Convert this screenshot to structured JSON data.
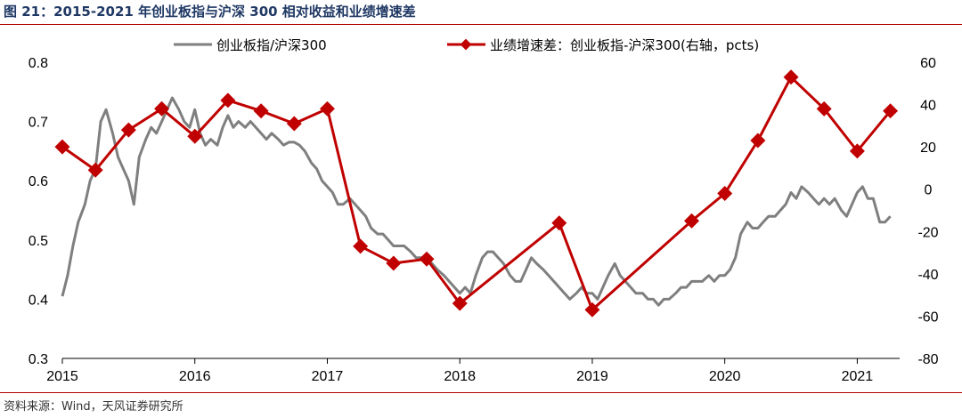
{
  "figure": {
    "title": "图 21：2015-2021 年创业板指与沪深 300 相对收益和业绩增速差",
    "source": "资料来源：Wind，天风证券研究所"
  },
  "chart_data": {
    "type": "line",
    "title": "2015-2021 年创业板指与沪深 300 相对收益和业绩增速差",
    "xlabel": "",
    "ylabel": "",
    "x_ticks": [
      "2015",
      "2016",
      "2017",
      "2018",
      "2019",
      "2020",
      "2021"
    ],
    "x_range": [
      2015.0,
      2021.32
    ],
    "y_left": {
      "range": [
        0.3,
        0.8
      ],
      "ticks": [
        "0.3",
        "0.4",
        "0.5",
        "0.6",
        "0.7",
        "0.8"
      ]
    },
    "y_right": {
      "range": [
        -80,
        60
      ],
      "ticks": [
        "-80",
        "-60",
        "-40",
        "-20",
        "0",
        "20",
        "40",
        "60"
      ]
    },
    "grid": false,
    "legend_position": "top",
    "colors": {
      "ratio_line": "#7f7f7f",
      "growth_line": "#c00000"
    },
    "series": [
      {
        "name": "创业板指/沪深300",
        "axis": "left",
        "style": "line",
        "points": [
          [
            2015.0,
            0.405
          ],
          [
            2015.04,
            0.44
          ],
          [
            2015.08,
            0.49
          ],
          [
            2015.12,
            0.53
          ],
          [
            2015.17,
            0.56
          ],
          [
            2015.21,
            0.6
          ],
          [
            2015.25,
            0.62
          ],
          [
            2015.29,
            0.7
          ],
          [
            2015.33,
            0.72
          ],
          [
            2015.38,
            0.68
          ],
          [
            2015.42,
            0.64
          ],
          [
            2015.46,
            0.62
          ],
          [
            2015.5,
            0.6
          ],
          [
            2015.54,
            0.56
          ],
          [
            2015.58,
            0.64
          ],
          [
            2015.63,
            0.67
          ],
          [
            2015.67,
            0.69
          ],
          [
            2015.71,
            0.68
          ],
          [
            2015.75,
            0.7
          ],
          [
            2015.79,
            0.72
          ],
          [
            2015.83,
            0.74
          ],
          [
            2015.88,
            0.72
          ],
          [
            2015.92,
            0.7
          ],
          [
            2015.96,
            0.69
          ],
          [
            2016.0,
            0.72
          ],
          [
            2016.04,
            0.68
          ],
          [
            2016.08,
            0.66
          ],
          [
            2016.12,
            0.67
          ],
          [
            2016.17,
            0.66
          ],
          [
            2016.21,
            0.69
          ],
          [
            2016.25,
            0.71
          ],
          [
            2016.29,
            0.69
          ],
          [
            2016.33,
            0.7
          ],
          [
            2016.38,
            0.69
          ],
          [
            2016.42,
            0.7
          ],
          [
            2016.46,
            0.69
          ],
          [
            2016.5,
            0.68
          ],
          [
            2016.54,
            0.67
          ],
          [
            2016.58,
            0.68
          ],
          [
            2016.63,
            0.67
          ],
          [
            2016.67,
            0.66
          ],
          [
            2016.71,
            0.665
          ],
          [
            2016.75,
            0.665
          ],
          [
            2016.79,
            0.66
          ],
          [
            2016.83,
            0.65
          ],
          [
            2016.88,
            0.63
          ],
          [
            2016.92,
            0.62
          ],
          [
            2016.96,
            0.6
          ],
          [
            2017.0,
            0.59
          ],
          [
            2017.04,
            0.58
          ],
          [
            2017.08,
            0.56
          ],
          [
            2017.12,
            0.56
          ],
          [
            2017.17,
            0.57
          ],
          [
            2017.21,
            0.56
          ],
          [
            2017.25,
            0.55
          ],
          [
            2017.29,
            0.54
          ],
          [
            2017.33,
            0.52
          ],
          [
            2017.38,
            0.51
          ],
          [
            2017.42,
            0.51
          ],
          [
            2017.46,
            0.5
          ],
          [
            2017.5,
            0.49
          ],
          [
            2017.54,
            0.49
          ],
          [
            2017.58,
            0.49
          ],
          [
            2017.63,
            0.48
          ],
          [
            2017.67,
            0.47
          ],
          [
            2017.71,
            0.47
          ],
          [
            2017.75,
            0.47
          ],
          [
            2017.79,
            0.46
          ],
          [
            2017.83,
            0.45
          ],
          [
            2017.88,
            0.44
          ],
          [
            2017.92,
            0.43
          ],
          [
            2017.96,
            0.42
          ],
          [
            2018.0,
            0.41
          ],
          [
            2018.04,
            0.42
          ],
          [
            2018.08,
            0.41
          ],
          [
            2018.12,
            0.44
          ],
          [
            2018.17,
            0.47
          ],
          [
            2018.21,
            0.48
          ],
          [
            2018.25,
            0.48
          ],
          [
            2018.29,
            0.47
          ],
          [
            2018.33,
            0.46
          ],
          [
            2018.38,
            0.44
          ],
          [
            2018.42,
            0.43
          ],
          [
            2018.46,
            0.43
          ],
          [
            2018.5,
            0.45
          ],
          [
            2018.54,
            0.47
          ],
          [
            2018.58,
            0.46
          ],
          [
            2018.63,
            0.45
          ],
          [
            2018.67,
            0.44
          ],
          [
            2018.71,
            0.43
          ],
          [
            2018.75,
            0.42
          ],
          [
            2018.79,
            0.41
          ],
          [
            2018.83,
            0.4
          ],
          [
            2018.88,
            0.41
          ],
          [
            2018.92,
            0.42
          ],
          [
            2018.96,
            0.41
          ],
          [
            2019.0,
            0.41
          ],
          [
            2019.04,
            0.4
          ],
          [
            2019.08,
            0.42
          ],
          [
            2019.12,
            0.44
          ],
          [
            2019.17,
            0.46
          ],
          [
            2019.21,
            0.44
          ],
          [
            2019.25,
            0.43
          ],
          [
            2019.29,
            0.42
          ],
          [
            2019.33,
            0.41
          ],
          [
            2019.38,
            0.41
          ],
          [
            2019.42,
            0.4
          ],
          [
            2019.46,
            0.4
          ],
          [
            2019.5,
            0.39
          ],
          [
            2019.54,
            0.4
          ],
          [
            2019.58,
            0.4
          ],
          [
            2019.63,
            0.41
          ],
          [
            2019.67,
            0.42
          ],
          [
            2019.71,
            0.42
          ],
          [
            2019.75,
            0.43
          ],
          [
            2019.79,
            0.43
          ],
          [
            2019.83,
            0.43
          ],
          [
            2019.88,
            0.44
          ],
          [
            2019.92,
            0.43
          ],
          [
            2019.96,
            0.44
          ],
          [
            2020.0,
            0.44
          ],
          [
            2020.04,
            0.45
          ],
          [
            2020.08,
            0.47
          ],
          [
            2020.12,
            0.51
          ],
          [
            2020.17,
            0.53
          ],
          [
            2020.21,
            0.52
          ],
          [
            2020.25,
            0.52
          ],
          [
            2020.29,
            0.53
          ],
          [
            2020.33,
            0.54
          ],
          [
            2020.38,
            0.54
          ],
          [
            2020.42,
            0.55
          ],
          [
            2020.46,
            0.56
          ],
          [
            2020.5,
            0.58
          ],
          [
            2020.54,
            0.57
          ],
          [
            2020.58,
            0.59
          ],
          [
            2020.63,
            0.58
          ],
          [
            2020.67,
            0.57
          ],
          [
            2020.71,
            0.56
          ],
          [
            2020.75,
            0.57
          ],
          [
            2020.79,
            0.56
          ],
          [
            2020.83,
            0.57
          ],
          [
            2020.88,
            0.55
          ],
          [
            2020.92,
            0.54
          ],
          [
            2020.96,
            0.56
          ],
          [
            2021.0,
            0.58
          ],
          [
            2021.04,
            0.59
          ],
          [
            2021.08,
            0.57
          ],
          [
            2021.12,
            0.57
          ],
          [
            2021.17,
            0.53
          ],
          [
            2021.21,
            0.53
          ],
          [
            2021.25,
            0.54
          ]
        ]
      },
      {
        "name": "业绩增速差：创业板指-沪深300(右轴，pcts)",
        "axis": "right",
        "style": "line-diamond",
        "points": [
          [
            2015.0,
            20
          ],
          [
            2015.25,
            9
          ],
          [
            2015.5,
            28
          ],
          [
            2015.75,
            38
          ],
          [
            2016.0,
            25
          ],
          [
            2016.25,
            42
          ],
          [
            2016.5,
            37
          ],
          [
            2016.75,
            31
          ],
          [
            2017.0,
            38
          ],
          [
            2017.25,
            -27
          ],
          [
            2017.5,
            -35
          ],
          [
            2017.75,
            -33
          ],
          [
            2018.0,
            -54
          ],
          [
            2018.75,
            -16
          ],
          [
            2019.0,
            -57
          ],
          [
            2019.75,
            -15
          ],
          [
            2020.0,
            -2
          ],
          [
            2020.25,
            23
          ],
          [
            2020.5,
            53
          ],
          [
            2020.75,
            38
          ],
          [
            2021.0,
            18
          ],
          [
            2021.25,
            37
          ]
        ]
      }
    ]
  }
}
